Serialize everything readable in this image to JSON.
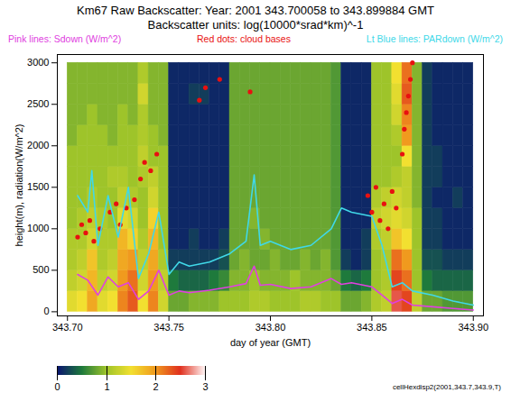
{
  "chart_data": {
    "type": "heatmap",
    "title": "Km67 Raw Backscatter: Year: 2001 343.700058 to 343.899884 GMT",
    "subtitle": "Backscatter units: log(10000*srad*km)^-1",
    "xlabel": "day of year (GMT)",
    "ylabel": "height(m), radiation(W/m^2)",
    "caption": "cellHexdisp2(2001,343.7,343.9,T)",
    "xlim": [
      343.695,
      343.905
    ],
    "ylim": [
      -50,
      3100
    ],
    "xticks": [
      {
        "value": 343.7,
        "label": "343.70"
      },
      343.75,
      {
        "value": 343.8,
        "label": "343.80"
      },
      343.85,
      {
        "value": 343.9,
        "label": "343.90"
      }
    ],
    "yticks": [
      0,
      500,
      1000,
      1500,
      2000,
      2500,
      3000
    ],
    "legend": "top",
    "cells": {
      "x_edges": [
        343.7,
        343.705,
        343.71,
        343.715,
        343.72,
        343.725,
        343.73,
        343.735,
        343.74,
        343.745,
        343.75,
        343.755,
        343.76,
        343.765,
        343.77,
        343.775,
        343.78,
        343.785,
        343.79,
        343.795,
        343.8,
        343.805,
        343.81,
        343.815,
        343.82,
        343.825,
        343.83,
        343.835,
        343.84,
        343.845,
        343.85,
        343.855,
        343.86,
        343.865,
        343.87,
        343.875,
        343.88,
        343.885,
        343.89,
        343.895,
        343.9
      ],
      "y_edges": [
        0,
        250,
        500,
        750,
        1000,
        1250,
        1500,
        1750,
        2000,
        2250,
        2500,
        2750,
        3000
      ],
      "values": [
        [
          1.4,
          1.5,
          1.9,
          1.4,
          1.5,
          2.1,
          2.3,
          1.5,
          2.1,
          1.3,
          0.8,
          0.8,
          0.9,
          0.9,
          0.9,
          1.0,
          1.0,
          1.0,
          1.1,
          1.1,
          1.0,
          1.0,
          1.0,
          1.1,
          1.1,
          1.0,
          1.0,
          0.8,
          0.8,
          0.9,
          1.1,
          1.2,
          2.6,
          2.4,
          1.2,
          0.8,
          0.8,
          0.7,
          0.7,
          0.7
        ],
        [
          1.2,
          1.3,
          1.8,
          1.2,
          1.3,
          2.0,
          2.2,
          1.3,
          2.0,
          1.2,
          0.5,
          0.4,
          0.4,
          0.4,
          0.5,
          0.6,
          0.9,
          0.9,
          1.0,
          0.9,
          0.9,
          0.9,
          1.0,
          0.9,
          0.9,
          0.9,
          0.8,
          0.5,
          0.4,
          0.5,
          1.0,
          1.1,
          2.4,
          2.2,
          1.0,
          0.5,
          0.4,
          0.4,
          0.4,
          0.4
        ],
        [
          1.1,
          1.2,
          1.7,
          1.1,
          1.2,
          1.9,
          2.0,
          1.2,
          1.9,
          1.1,
          0.2,
          0.2,
          0.2,
          0.2,
          0.2,
          0.3,
          0.8,
          0.9,
          0.8,
          0.8,
          0.9,
          0.8,
          0.8,
          0.9,
          0.8,
          0.9,
          0.7,
          0.2,
          0.1,
          0.2,
          1.0,
          1.1,
          2.2,
          2.0,
          1.0,
          0.3,
          0.3,
          0.2,
          0.2,
          0.2
        ],
        [
          1.1,
          1.1,
          1.3,
          1.1,
          1.1,
          1.8,
          1.6,
          1.1,
          1.8,
          1.0,
          0.1,
          0.1,
          0.2,
          0.1,
          0.1,
          0.2,
          0.8,
          0.8,
          0.8,
          0.9,
          0.8,
          0.8,
          0.8,
          0.8,
          0.8,
          0.8,
          0.7,
          0.1,
          0.1,
          0.2,
          1.1,
          1.2,
          1.7,
          1.5,
          1.0,
          0.2,
          0.2,
          0.1,
          0.1,
          0.1
        ],
        [
          1.0,
          1.1,
          1.2,
          1.1,
          1.0,
          1.4,
          1.3,
          1.0,
          1.6,
          1.0,
          0.1,
          0.1,
          0.1,
          0.1,
          0.1,
          0.1,
          0.8,
          0.8,
          0.9,
          0.8,
          0.8,
          0.8,
          0.8,
          0.8,
          0.8,
          0.8,
          0.7,
          0.1,
          0.1,
          0.1,
          1.2,
          1.3,
          1.4,
          1.3,
          1.0,
          0.2,
          0.2,
          0.1,
          0.1,
          0.1
        ],
        [
          1.0,
          1.0,
          1.1,
          1.0,
          1.0,
          1.2,
          1.1,
          1.0,
          1.3,
          1.0,
          0.1,
          0.1,
          0.1,
          0.1,
          0.1,
          0.1,
          0.8,
          0.8,
          0.8,
          0.8,
          0.8,
          0.8,
          0.8,
          0.8,
          0.8,
          0.8,
          0.7,
          0.1,
          0.1,
          0.1,
          1.1,
          1.2,
          1.3,
          1.2,
          0.9,
          0.2,
          0.1,
          0.1,
          0.2,
          0.1
        ],
        [
          1.0,
          1.0,
          1.0,
          1.0,
          1.1,
          1.1,
          1.0,
          1.1,
          1.2,
          1.0,
          0.1,
          0.1,
          0.1,
          0.1,
          0.1,
          0.1,
          0.8,
          0.8,
          0.8,
          0.8,
          0.8,
          0.8,
          0.8,
          0.8,
          0.8,
          0.8,
          0.7,
          0.1,
          0.1,
          0.1,
          1.0,
          1.0,
          1.1,
          1.2,
          0.9,
          0.2,
          0.2,
          0.1,
          0.1,
          0.1
        ],
        [
          1.0,
          1.0,
          1.0,
          1.0,
          1.0,
          1.0,
          1.0,
          1.2,
          1.0,
          1.0,
          0.1,
          0.1,
          0.1,
          0.1,
          0.1,
          0.1,
          0.8,
          0.8,
          0.8,
          0.8,
          0.8,
          0.8,
          0.8,
          0.8,
          0.8,
          0.8,
          0.7,
          0.1,
          0.1,
          0.1,
          1.0,
          1.0,
          1.0,
          1.5,
          0.9,
          0.2,
          0.2,
          0.1,
          0.1,
          0.1
        ],
        [
          0.9,
          1.0,
          1.0,
          1.0,
          0.9,
          1.0,
          1.0,
          1.1,
          1.0,
          0.9,
          0.1,
          0.1,
          0.1,
          0.1,
          0.1,
          0.1,
          0.8,
          0.8,
          0.8,
          0.8,
          0.8,
          0.8,
          0.8,
          0.8,
          0.8,
          0.8,
          0.7,
          0.1,
          0.1,
          0.1,
          1.0,
          1.0,
          1.1,
          2.0,
          0.9,
          0.2,
          0.1,
          0.1,
          0.1,
          0.1
        ],
        [
          0.9,
          0.9,
          1.0,
          0.9,
          0.9,
          1.0,
          0.9,
          1.1,
          0.9,
          0.9,
          0.1,
          0.1,
          0.1,
          0.1,
          0.1,
          0.1,
          0.8,
          0.8,
          0.8,
          0.8,
          0.8,
          0.8,
          0.8,
          0.8,
          0.8,
          0.8,
          0.7,
          0.1,
          0.1,
          0.1,
          1.0,
          1.0,
          1.3,
          2.1,
          0.9,
          0.2,
          0.1,
          0.1,
          0.1,
          0.1
        ],
        [
          0.9,
          0.9,
          0.9,
          0.9,
          0.9,
          0.9,
          0.9,
          1.3,
          0.9,
          0.9,
          0.1,
          0.1,
          0.2,
          0.2,
          0.1,
          0.1,
          0.8,
          0.8,
          0.8,
          0.8,
          0.8,
          0.8,
          0.8,
          0.8,
          0.8,
          0.8,
          0.7,
          0.1,
          0.1,
          0.1,
          1.0,
          1.0,
          1.4,
          2.3,
          0.9,
          0.2,
          0.1,
          0.1,
          0.1,
          0.1
        ],
        [
          0.9,
          0.9,
          0.9,
          0.9,
          0.9,
          0.9,
          0.9,
          1.1,
          0.9,
          0.9,
          0.1,
          0.1,
          0.1,
          0.1,
          0.1,
          0.1,
          0.8,
          0.8,
          0.8,
          0.8,
          0.8,
          0.8,
          0.8,
          0.8,
          0.8,
          0.8,
          0.7,
          0.1,
          0.1,
          0.1,
          1.0,
          1.0,
          1.5,
          2.2,
          0.9,
          0.2,
          0.1,
          0.1,
          0.1,
          0.1
        ]
      ]
    },
    "color_range": [
      0,
      3
    ],
    "color_ticks": [
      0,
      1,
      2,
      3
    ],
    "series": [
      {
        "name": "Pink lines: Sdown (W/m^2)",
        "type": "line",
        "color": "#e040e0",
        "x": [
          343.705,
          343.71,
          343.715,
          343.72,
          343.725,
          343.73,
          343.735,
          343.74,
          343.745,
          343.75,
          343.755,
          343.76,
          343.77,
          343.78,
          343.788,
          343.792,
          343.795,
          343.8,
          343.81,
          343.82,
          343.83,
          343.835,
          343.84,
          343.85,
          343.855,
          343.86,
          343.865,
          343.87,
          343.88,
          343.89,
          343.9
        ],
        "values": [
          450,
          380,
          200,
          420,
          300,
          350,
          150,
          250,
          500,
          200,
          250,
          230,
          260,
          300,
          340,
          550,
          320,
          330,
          280,
          300,
          400,
          330,
          350,
          300,
          200,
          100,
          150,
          80,
          60,
          40,
          20
        ]
      },
      {
        "name": "Red dots: cloud bases",
        "type": "scatter",
        "marker": "circle",
        "color": "#e81010",
        "x": [
          343.705,
          343.707,
          343.709,
          343.711,
          343.713,
          343.716,
          343.721,
          343.724,
          343.726,
          343.729,
          343.733,
          343.736,
          343.738,
          343.741,
          343.744,
          343.765,
          343.768,
          343.775,
          343.79,
          343.848,
          343.85,
          343.852,
          343.854,
          343.856,
          343.858,
          343.86,
          343.862,
          343.865,
          343.866,
          343.867,
          343.868,
          343.869,
          343.87
        ],
        "values": [
          900,
          1050,
          950,
          1100,
          850,
          1000,
          1200,
          1300,
          1050,
          1250,
          1350,
          1600,
          1800,
          1700,
          1900,
          2550,
          2700,
          2800,
          2650,
          1400,
          1200,
          1500,
          1100,
          1300,
          1000,
          1450,
          1250,
          1900,
          2200,
          2400,
          2600,
          2800,
          3000
        ]
      },
      {
        "name": "Lt Blue lines: PARdown (W/m^2)",
        "type": "line",
        "color": "#40d8e8",
        "x": [
          343.705,
          343.71,
          343.712,
          343.715,
          343.72,
          343.725,
          343.73,
          343.735,
          343.74,
          343.745,
          343.75,
          343.755,
          343.76,
          343.77,
          343.78,
          343.788,
          343.792,
          343.795,
          343.8,
          343.81,
          343.82,
          343.83,
          343.835,
          343.84,
          343.85,
          343.855,
          343.86,
          343.865,
          343.87,
          343.88,
          343.89,
          343.9
        ],
        "values": [
          1400,
          1200,
          1700,
          800,
          1400,
          900,
          1500,
          400,
          700,
          1200,
          450,
          600,
          550,
          600,
          700,
          850,
          1650,
          800,
          850,
          750,
          800,
          1000,
          1250,
          1200,
          1150,
          800,
          300,
          350,
          250,
          200,
          130,
          80
        ]
      }
    ]
  }
}
